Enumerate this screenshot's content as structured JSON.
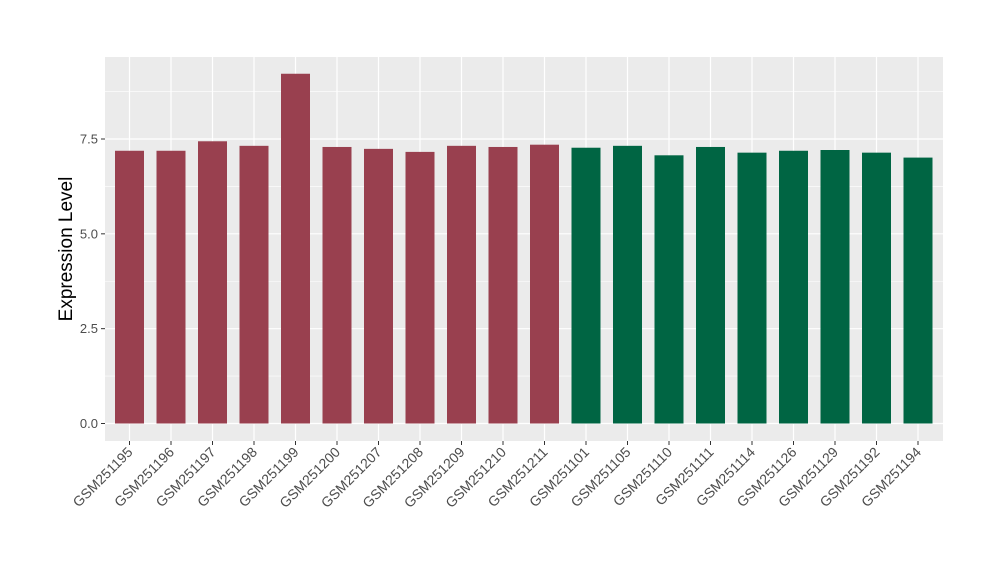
{
  "chart_data": {
    "type": "bar",
    "title": "",
    "xlabel": "",
    "ylabel": "Expression Level",
    "ylim": [
      0,
      9.7
    ],
    "yticks": [
      0.0,
      2.5,
      5.0,
      7.5
    ],
    "ytick_labels": [
      "0.0",
      "2.5",
      "5.0",
      "7.5"
    ],
    "grid": true,
    "legend": "none",
    "panel_background": "#ebebeb",
    "grid_color": "#ffffff",
    "categories": [
      "GSM251195",
      "GSM251196",
      "GSM251197",
      "GSM251198",
      "GSM251199",
      "GSM251200",
      "GSM251207",
      "GSM251208",
      "GSM251209",
      "GSM251210",
      "GSM251211",
      "GSM251101",
      "GSM251105",
      "GSM251110",
      "GSM251111",
      "GSM251114",
      "GSM251126",
      "GSM251129",
      "GSM251192",
      "GSM251194"
    ],
    "values": [
      7.19,
      7.19,
      7.44,
      7.32,
      9.22,
      7.29,
      7.24,
      7.16,
      7.32,
      7.29,
      7.35,
      7.27,
      7.32,
      7.07,
      7.29,
      7.14,
      7.19,
      7.21,
      7.14,
      7.01
    ],
    "bar_colors": [
      "#99404f",
      "#99404f",
      "#99404f",
      "#99404f",
      "#99404f",
      "#99404f",
      "#99404f",
      "#99404f",
      "#99404f",
      "#99404f",
      "#99404f",
      "#006543",
      "#006543",
      "#006543",
      "#006543",
      "#006543",
      "#006543",
      "#006543",
      "#006543",
      "#006543"
    ]
  }
}
